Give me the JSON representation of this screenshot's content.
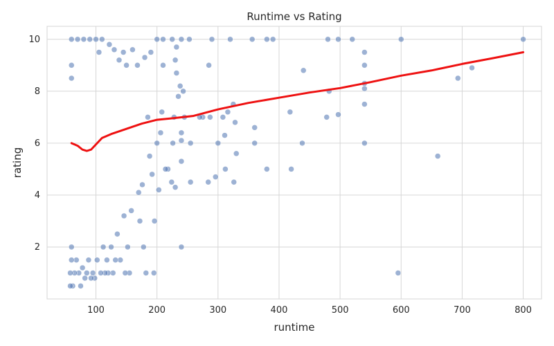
{
  "chart_data": {
    "type": "scatter",
    "title": "Runtime vs Rating",
    "xlabel": "runtime",
    "ylabel": "rating",
    "xlim": [
      20,
      830
    ],
    "ylim": [
      0.0,
      10.5
    ],
    "xticks": [
      100,
      200,
      300,
      400,
      500,
      600,
      700,
      800
    ],
    "yticks": [
      2,
      4,
      6,
      8,
      10
    ],
    "grid": true,
    "series": [
      {
        "kind": "scatter",
        "color": "#4c72b0",
        "points": [
          [
            800,
            10
          ],
          [
            600,
            10
          ],
          [
            520,
            10
          ],
          [
            497,
            10
          ],
          [
            480,
            10
          ],
          [
            390,
            10
          ],
          [
            380,
            10
          ],
          [
            356,
            10
          ],
          [
            320,
            10
          ],
          [
            290,
            10
          ],
          [
            253,
            10
          ],
          [
            240,
            10
          ],
          [
            225,
            10
          ],
          [
            210,
            10
          ],
          [
            200,
            10
          ],
          [
            716,
            8.9
          ],
          [
            693,
            8.5
          ],
          [
            540,
            9.5
          ],
          [
            540,
            9.0
          ],
          [
            540,
            8.3
          ],
          [
            540,
            8.1
          ],
          [
            540,
            7.5
          ],
          [
            540,
            6.0
          ],
          [
            482,
            8.0
          ],
          [
            478,
            7.0
          ],
          [
            497,
            7.1
          ],
          [
            440,
            8.8
          ],
          [
            418,
            7.2
          ],
          [
            438,
            6.0
          ],
          [
            420,
            5.0
          ],
          [
            380,
            5.0
          ],
          [
            660,
            5.5
          ],
          [
            595,
            1.0
          ],
          [
            360,
            6.6
          ],
          [
            360,
            6.0
          ],
          [
            328,
            6.8
          ],
          [
            325,
            7.5
          ],
          [
            330,
            5.6
          ],
          [
            326,
            4.5
          ],
          [
            316,
            7.2
          ],
          [
            311,
            6.3
          ],
          [
            308,
            7.0
          ],
          [
            312,
            5.0
          ],
          [
            300,
            6.0
          ],
          [
            296,
            4.7
          ],
          [
            285,
            9.0
          ],
          [
            284,
            4.5
          ],
          [
            287,
            7.0
          ],
          [
            275,
            7.0
          ],
          [
            270,
            7.0
          ],
          [
            255,
            6.0
          ],
          [
            255,
            4.5
          ],
          [
            245,
            7.0
          ],
          [
            240,
            6.4
          ],
          [
            240,
            6.1
          ],
          [
            240,
            5.3
          ],
          [
            238,
            8.2
          ],
          [
            235,
            7.8
          ],
          [
            232,
            8.7
          ],
          [
            232,
            9.7
          ],
          [
            230,
            9.2
          ],
          [
            230,
            4.3
          ],
          [
            240,
            2.0
          ],
          [
            243,
            8.0
          ],
          [
            228,
            7.0
          ],
          [
            226,
            6.0
          ],
          [
            224,
            4.5
          ],
          [
            218,
            5.0
          ],
          [
            214,
            5.0
          ],
          [
            210,
            9.0
          ],
          [
            208,
            7.2
          ],
          [
            206,
            6.4
          ],
          [
            203,
            4.2
          ],
          [
            200,
            6.0
          ],
          [
            196,
            3.0
          ],
          [
            195,
            1.0
          ],
          [
            192,
            4.8
          ],
          [
            190,
            9.5
          ],
          [
            188,
            5.5
          ],
          [
            185,
            7.0
          ],
          [
            182,
            1.0
          ],
          [
            180,
            9.3
          ],
          [
            178,
            2.0
          ],
          [
            176,
            4.4
          ],
          [
            172,
            3.0
          ],
          [
            170,
            4.1
          ],
          [
            168,
            9.0
          ],
          [
            160,
            9.6
          ],
          [
            158,
            3.4
          ],
          [
            155,
            1.0
          ],
          [
            152,
            2.0
          ],
          [
            150,
            9.0
          ],
          [
            148,
            1.0
          ],
          [
            146,
            3.2
          ],
          [
            145,
            9.5
          ],
          [
            140,
            1.5
          ],
          [
            138,
            9.2
          ],
          [
            135,
            2.5
          ],
          [
            132,
            1.5
          ],
          [
            130,
            9.6
          ],
          [
            128,
            1.0
          ],
          [
            125,
            2.0
          ],
          [
            122,
            9.8
          ],
          [
            120,
            1.0
          ],
          [
            118,
            1.5
          ],
          [
            115,
            1.0
          ],
          [
            112,
            2.0
          ],
          [
            110,
            10
          ],
          [
            108,
            1.0
          ],
          [
            105,
            9.5
          ],
          [
            102,
            1.5
          ],
          [
            100,
            10
          ],
          [
            98,
            0.8
          ],
          [
            95,
            1.0
          ],
          [
            92,
            0.8
          ],
          [
            90,
            10
          ],
          [
            88,
            1.5
          ],
          [
            85,
            1.0
          ],
          [
            82,
            0.8
          ],
          [
            80,
            10
          ],
          [
            78,
            1.2
          ],
          [
            75,
            0.5
          ],
          [
            72,
            1.0
          ],
          [
            70,
            10
          ],
          [
            68,
            1.5
          ],
          [
            65,
            1.0
          ],
          [
            62,
            0.5
          ],
          [
            60,
            10
          ],
          [
            60,
            1.5
          ],
          [
            60,
            2.0
          ],
          [
            60,
            8.5
          ],
          [
            60,
            9.0
          ],
          [
            58,
            1.0
          ],
          [
            58,
            0.5
          ]
        ]
      },
      {
        "kind": "line",
        "color": "#ee1111",
        "points": [
          [
            60,
            6.0
          ],
          [
            70,
            5.9
          ],
          [
            78,
            5.75
          ],
          [
            85,
            5.7
          ],
          [
            92,
            5.75
          ],
          [
            100,
            5.95
          ],
          [
            110,
            6.2
          ],
          [
            125,
            6.35
          ],
          [
            150,
            6.55
          ],
          [
            175,
            6.75
          ],
          [
            200,
            6.9
          ],
          [
            230,
            6.97
          ],
          [
            260,
            7.05
          ],
          [
            300,
            7.3
          ],
          [
            350,
            7.55
          ],
          [
            400,
            7.75
          ],
          [
            450,
            7.95
          ],
          [
            500,
            8.12
          ],
          [
            550,
            8.35
          ],
          [
            600,
            8.6
          ],
          [
            650,
            8.8
          ],
          [
            700,
            9.05
          ],
          [
            750,
            9.27
          ],
          [
            800,
            9.5
          ]
        ]
      }
    ]
  }
}
